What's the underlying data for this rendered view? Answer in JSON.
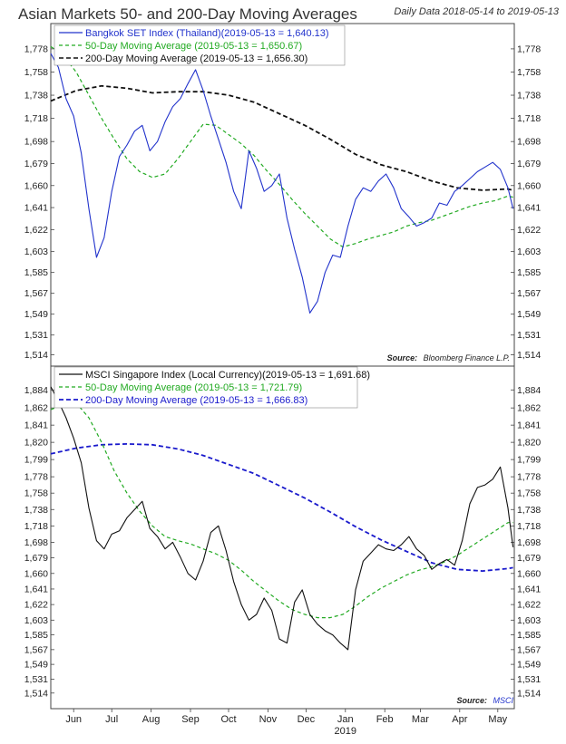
{
  "header": {
    "title": "Asian Markets 50- and 200-Day Moving Averages",
    "subtitle": "Daily Data 2018-05-14 to 2019-05-13"
  },
  "colors": {
    "blue": "#2233cc",
    "green": "#22aa22",
    "black": "#111111",
    "navy": "#1a1acc"
  },
  "chart_data": [
    {
      "type": "line",
      "name": "Bangkok SET panel",
      "legend_position": "top-left",
      "y_ticks": [
        1514,
        1531,
        1549,
        1567,
        1585,
        1603,
        1622,
        1641,
        1660,
        1679,
        1698,
        1718,
        1738,
        1758,
        1778
      ],
      "y_tick_labels": [
        "1,514",
        "1,531",
        "1,549",
        "1,567",
        "1,585",
        "1,603",
        "1,622",
        "1,641",
        "1,660",
        "1,679",
        "1,698",
        "1,718",
        "1,738",
        "1,758",
        "1,778"
      ],
      "ylim": [
        1512,
        1792
      ],
      "xlim": [
        0,
        365
      ],
      "source": "Bloomberg Finance L.P.",
      "source_label": "Source:",
      "series": [
        {
          "name": "Bangkok SET Index (Thailand)(2019-05-13 = 1,640.13)",
          "color": "#2233cc",
          "dash": "solid",
          "x": [
            0,
            6,
            12,
            18,
            24,
            30,
            36,
            42,
            48,
            54,
            60,
            66,
            72,
            78,
            84,
            90,
            96,
            102,
            108,
            114,
            120,
            126,
            132,
            138,
            144,
            150,
            156,
            162,
            168,
            174,
            180,
            186,
            192,
            198,
            204,
            210,
            216,
            222,
            228,
            234,
            240,
            246,
            252,
            258,
            264,
            270,
            276,
            282,
            288,
            294,
            300,
            306,
            312,
            318,
            324,
            330,
            336,
            342,
            348,
            354,
            360,
            364
          ],
          "values": [
            1774,
            1762,
            1735,
            1720,
            1688,
            1640,
            1598,
            1615,
            1655,
            1685,
            1695,
            1707,
            1712,
            1690,
            1698,
            1715,
            1728,
            1735,
            1748,
            1760,
            1742,
            1720,
            1700,
            1680,
            1655,
            1640,
            1690,
            1675,
            1655,
            1660,
            1670,
            1632,
            1605,
            1581,
            1550,
            1560,
            1585,
            1600,
            1598,
            1625,
            1648,
            1658,
            1655,
            1664,
            1670,
            1658,
            1640,
            1633,
            1625,
            1628,
            1632,
            1645,
            1643,
            1655,
            1660,
            1666,
            1672,
            1676,
            1680,
            1674,
            1658,
            1640
          ]
        },
        {
          "name": "50-Day Moving Average (2019-05-13 = 1,650.67)",
          "color": "#22aa22",
          "dash": "dashed",
          "x": [
            0,
            10,
            20,
            30,
            40,
            50,
            60,
            70,
            80,
            90,
            100,
            110,
            120,
            130,
            140,
            150,
            160,
            170,
            180,
            190,
            200,
            210,
            220,
            230,
            240,
            250,
            260,
            270,
            280,
            290,
            300,
            310,
            320,
            330,
            340,
            350,
            360,
            364
          ],
          "values": [
            1780,
            1772,
            1758,
            1738,
            1718,
            1700,
            1683,
            1672,
            1667,
            1670,
            1683,
            1698,
            1713,
            1712,
            1704,
            1696,
            1686,
            1673,
            1661,
            1648,
            1636,
            1625,
            1614,
            1607,
            1610,
            1614,
            1617,
            1620,
            1625,
            1628,
            1630,
            1634,
            1638,
            1642,
            1645,
            1647,
            1651,
            1650
          ]
        },
        {
          "name": "200-Day Moving Average (2019-05-13 = 1,656.30)",
          "color": "#111111",
          "dash": "dashed",
          "x": [
            0,
            20,
            40,
            60,
            80,
            100,
            120,
            140,
            160,
            180,
            200,
            220,
            240,
            260,
            280,
            300,
            320,
            340,
            360,
            364
          ],
          "values": [
            1733,
            1742,
            1746,
            1744,
            1740,
            1741,
            1741,
            1738,
            1732,
            1722,
            1712,
            1700,
            1687,
            1678,
            1672,
            1664,
            1658,
            1656,
            1657,
            1656
          ]
        }
      ]
    },
    {
      "type": "line",
      "name": "MSCI Singapore panel",
      "legend_position": "top-left",
      "y_ticks": [
        1514,
        1531,
        1549,
        1567,
        1585,
        1603,
        1622,
        1641,
        1660,
        1679,
        1698,
        1718,
        1738,
        1758,
        1778,
        1799,
        1820,
        1841,
        1862,
        1884
      ],
      "y_tick_labels": [
        "1,514",
        "1,531",
        "1,549",
        "1,567",
        "1,585",
        "1,603",
        "1,622",
        "1,641",
        "1,660",
        "1,679",
        "1,698",
        "1,718",
        "1,738",
        "1,758",
        "1,778",
        "1,799",
        "1,820",
        "1,841",
        "1,862",
        "1,884"
      ],
      "ylim": [
        1506,
        1902
      ],
      "xlim": [
        0,
        365
      ],
      "source": "MSCI",
      "source_label": "Source:",
      "x_tick_labels": [
        "Jun",
        "Jul",
        "Aug",
        "Sep",
        "Oct",
        "Nov",
        "Dec",
        "Jan",
        "Feb",
        "Mar",
        "Apr",
        "May"
      ],
      "x_tick_positions": [
        18,
        48,
        79,
        110,
        140,
        171,
        201,
        232,
        263,
        291,
        322,
        352
      ],
      "x_year_label": "2019",
      "series": [
        {
          "name": "MSCI Singapore Index (Local Currency)(2019-05-13 = 1,691.68)",
          "color": "#111111",
          "dash": "solid",
          "x": [
            0,
            6,
            12,
            18,
            24,
            30,
            36,
            42,
            48,
            54,
            60,
            66,
            72,
            78,
            84,
            90,
            96,
            102,
            108,
            114,
            120,
            126,
            132,
            138,
            144,
            150,
            156,
            162,
            168,
            174,
            180,
            186,
            192,
            198,
            204,
            210,
            216,
            222,
            228,
            234,
            240,
            246,
            252,
            258,
            264,
            270,
            276,
            282,
            288,
            294,
            300,
            306,
            312,
            318,
            324,
            330,
            336,
            342,
            348,
            354,
            360,
            364
          ],
          "values": [
            1888,
            1870,
            1850,
            1825,
            1795,
            1740,
            1700,
            1690,
            1708,
            1712,
            1728,
            1738,
            1748,
            1715,
            1705,
            1690,
            1698,
            1680,
            1660,
            1652,
            1675,
            1710,
            1718,
            1688,
            1650,
            1622,
            1603,
            1610,
            1630,
            1615,
            1580,
            1575,
            1625,
            1640,
            1610,
            1598,
            1590,
            1585,
            1575,
            1567,
            1640,
            1675,
            1685,
            1695,
            1690,
            1688,
            1695,
            1705,
            1690,
            1682,
            1665,
            1672,
            1677,
            1670,
            1700,
            1745,
            1765,
            1768,
            1775,
            1790,
            1740,
            1692
          ]
        },
        {
          "name": "50-Day Moving Average (2019-05-13 = 1,721.79)",
          "color": "#22aa22",
          "dash": "dashed",
          "x": [
            0,
            10,
            20,
            30,
            40,
            50,
            60,
            70,
            80,
            90,
            100,
            110,
            120,
            130,
            140,
            150,
            160,
            170,
            180,
            190,
            200,
            210,
            220,
            230,
            240,
            250,
            260,
            270,
            280,
            290,
            300,
            310,
            320,
            330,
            340,
            350,
            360,
            364
          ],
          "values": [
            1860,
            1866,
            1868,
            1850,
            1820,
            1785,
            1758,
            1736,
            1718,
            1705,
            1700,
            1696,
            1690,
            1684,
            1676,
            1664,
            1650,
            1638,
            1626,
            1616,
            1610,
            1606,
            1606,
            1610,
            1620,
            1632,
            1642,
            1650,
            1658,
            1664,
            1668,
            1674,
            1682,
            1692,
            1702,
            1712,
            1722,
            1722
          ]
        },
        {
          "name": "200-Day Moving Average (2019-05-13 = 1,666.83)",
          "color": "#1a1acc",
          "dash": "dashed",
          "x": [
            0,
            20,
            40,
            60,
            80,
            100,
            120,
            140,
            160,
            180,
            200,
            220,
            240,
            260,
            280,
            300,
            320,
            340,
            360,
            364
          ],
          "values": [
            1806,
            1813,
            1817,
            1818,
            1817,
            1812,
            1804,
            1793,
            1782,
            1767,
            1752,
            1735,
            1717,
            1701,
            1687,
            1673,
            1665,
            1663,
            1666,
            1667
          ]
        }
      ]
    }
  ]
}
